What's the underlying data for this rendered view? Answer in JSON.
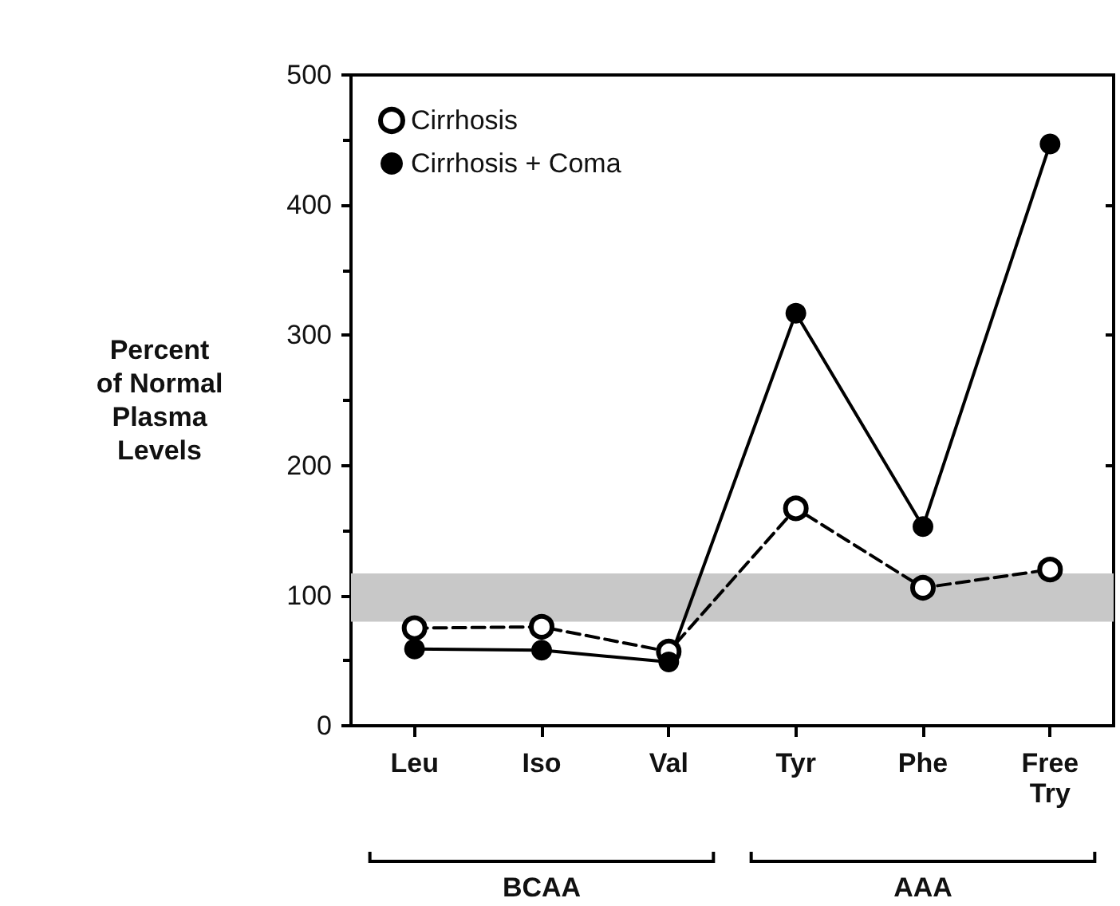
{
  "chart_data": {
    "type": "line",
    "ylabel": "Percent\nof Normal\nPlasma\nLevels",
    "categories": [
      "Leu",
      "Iso",
      "Val",
      "Tyr",
      "Phe",
      "Free\nTry"
    ],
    "series": [
      {
        "name": "Cirrhosis",
        "color": "#000000",
        "line_style": "dashed",
        "values": [
          75,
          76,
          57,
          167,
          106,
          120
        ]
      },
      {
        "name": "Cirrhosis + Coma",
        "color": "#000000",
        "line_style": "solid",
        "values": [
          59,
          58,
          49,
          317,
          153,
          447
        ]
      }
    ],
    "ylim": [
      0,
      500
    ],
    "yticks": [
      0,
      100,
      200,
      300,
      400,
      500
    ],
    "bands": [
      {
        "axis": "y",
        "from": 80,
        "to": 117,
        "color": "#c8c8c8"
      }
    ],
    "annotations": [
      "BCAA",
      "AAA"
    ],
    "marker": "circle",
    "grid": false,
    "legend": "top left"
  }
}
